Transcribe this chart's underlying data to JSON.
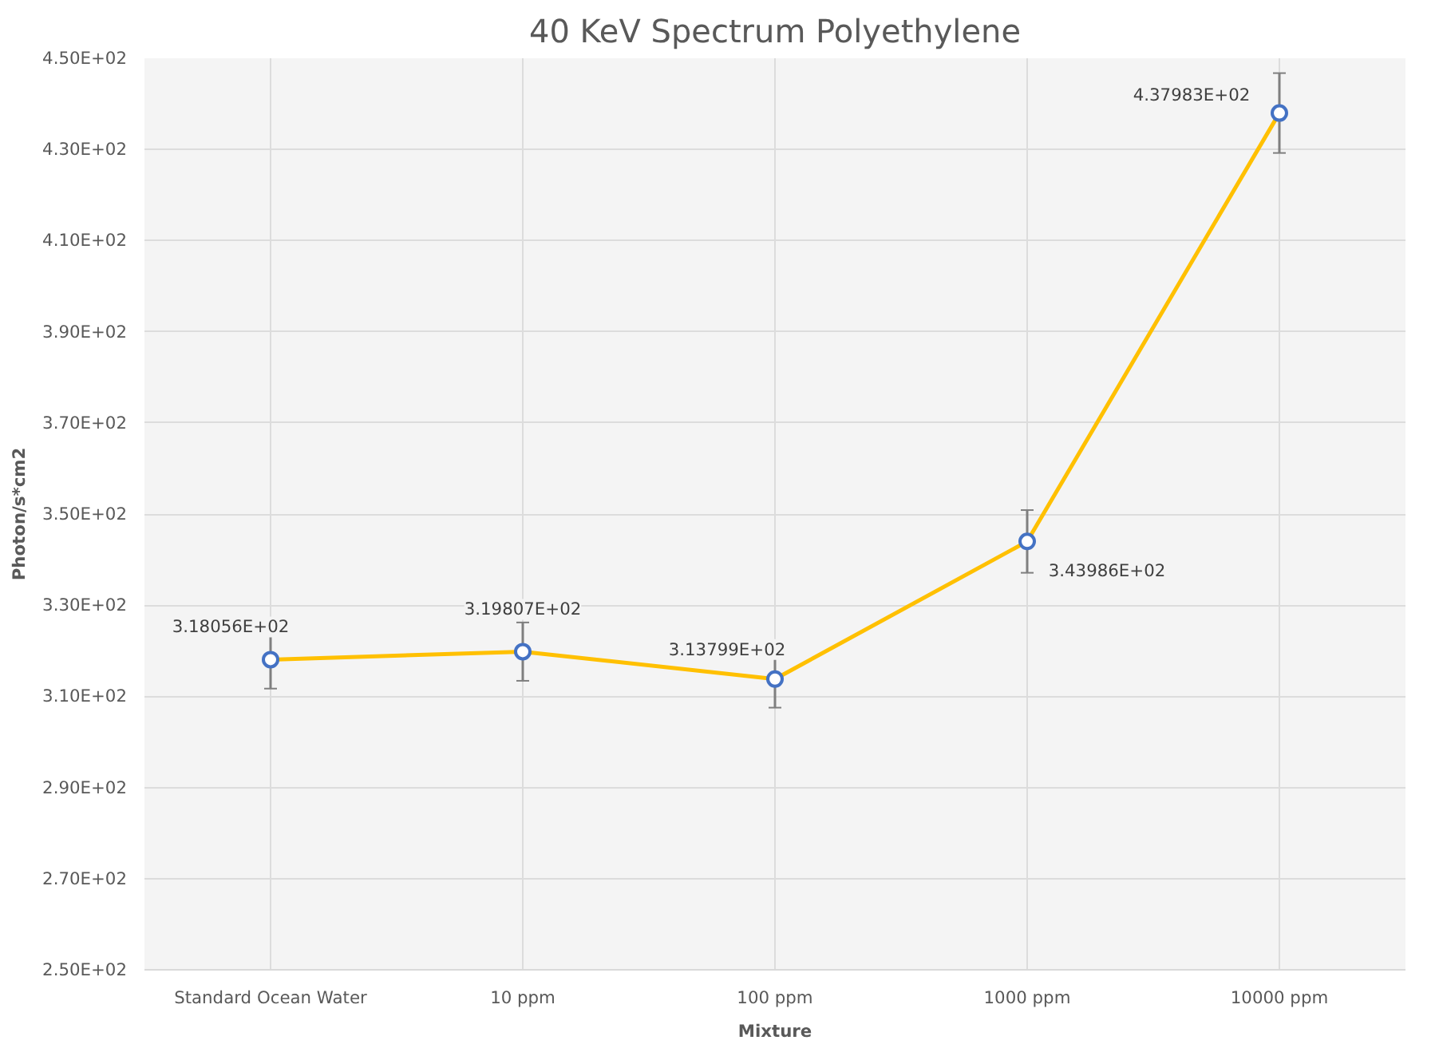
{
  "chart_data": {
    "type": "line",
    "title": "40 KeV Spectrum Polyethylene",
    "xlabel": "Mixture",
    "ylabel": "Photon/s*cm2",
    "categories": [
      "Standard Ocean Water",
      "10 ppm",
      "100 ppm",
      "1000 ppm",
      "10000 ppm"
    ],
    "series": [
      {
        "color": "#ffc000",
        "values": [
          318.056,
          319.807,
          313.799,
          343.986,
          437.983
        ],
        "errors": [
          6.36,
          6.4,
          6.28,
          6.88,
          8.76
        ],
        "value_labels": [
          "3.18056E+02",
          "3.19807E+02",
          "3.13799E+02",
          "3.43986E+02",
          "4.37983E+02"
        ]
      }
    ],
    "ylim": [
      250,
      450
    ],
    "yticks": [
      {
        "value": 250,
        "label": "2.50E+02"
      },
      {
        "value": 270,
        "label": "2.70E+02"
      },
      {
        "value": 290,
        "label": "2.90E+02"
      },
      {
        "value": 310,
        "label": "3.10E+02"
      },
      {
        "value": 330,
        "label": "3.30E+02"
      },
      {
        "value": 350,
        "label": "3.50E+02"
      },
      {
        "value": 370,
        "label": "3.70E+02"
      },
      {
        "value": 390,
        "label": "3.90E+02"
      },
      {
        "value": 410,
        "label": "4.10E+02"
      },
      {
        "value": 430,
        "label": "4.30E+02"
      },
      {
        "value": 450,
        "label": "4.50E+02"
      }
    ],
    "grid": true,
    "marker": "circle",
    "line_style": "solid"
  }
}
